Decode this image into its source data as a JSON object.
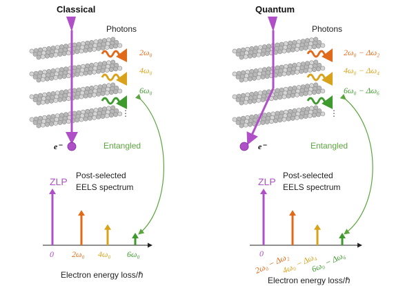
{
  "panels": {
    "classical": {
      "title": "Classical",
      "photons_label": "Photons",
      "entangled_label": "Entangled",
      "electron_label": "e⁻",
      "photon_labels": [
        "2ω₀",
        "4ω₀",
        "6ω₀"
      ],
      "zlp_label": "ZLP",
      "spectrum_label_line1": "Post-selected",
      "spectrum_label_line2": "EELS spectrum",
      "ticks": [
        "0",
        "2ω₀",
        "4ω₀",
        "6ω₀"
      ],
      "x_axis_label": "Electron energy loss/ℏ"
    },
    "quantum": {
      "title": "Quantum",
      "photons_label": "Photons",
      "entangled_label": "Entangled",
      "electron_label": "e⁻",
      "photon_labels": [
        "2ω₀ − Δω₂",
        "4ω₀ − Δω₄",
        "6ω₀ − Δω₆"
      ],
      "zlp_label": "ZLP",
      "spectrum_label_line1": "Post-selected",
      "spectrum_label_line2": "EELS spectrum",
      "ticks": [
        "0",
        "2ω₀ − Δω₂",
        "4ω₀ − Δω₄",
        "6ω₀ − Δω₆"
      ],
      "x_axis_label": "Electron energy loss/ℏ"
    }
  },
  "colors": {
    "electron": "#b050c8",
    "photon_2": "#e06a1a",
    "photon_4": "#d8a21a",
    "photon_6": "#3f9a2e",
    "entangled": "#5aa53c"
  },
  "spectrum_relative_heights": {
    "zlp": 1.0,
    "peak_2": 0.62,
    "peak_4": 0.37,
    "peak_6": 0.22
  }
}
